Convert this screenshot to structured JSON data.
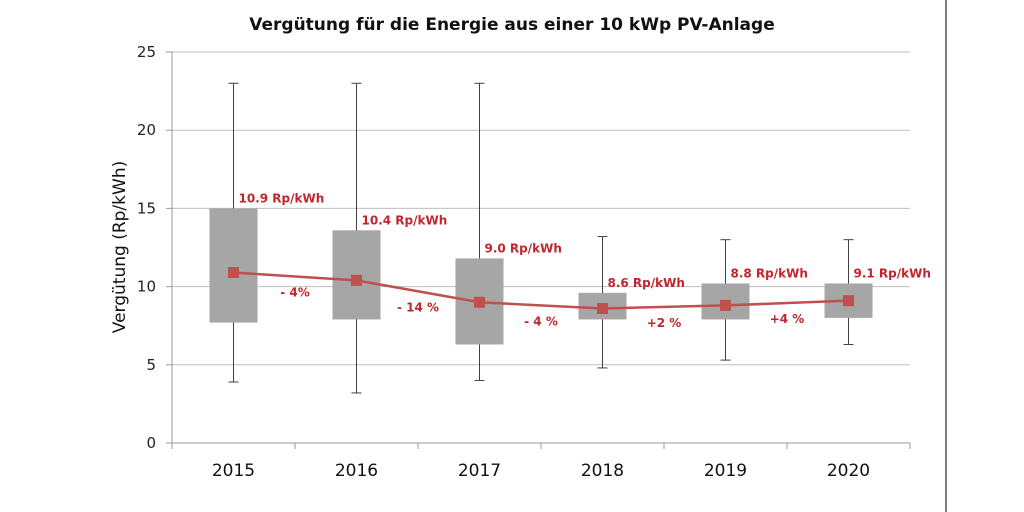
{
  "chart_data": {
    "type": "box",
    "title": "Vergütung für die Energie aus einer 10 kWp PV-Anlage",
    "xlabel": "",
    "ylabel": "Vergütung (Rp/kWh)",
    "ylim": [
      0,
      25
    ],
    "yticks": [
      0,
      5,
      10,
      15,
      20,
      25
    ],
    "grid": true,
    "legend": "none",
    "categories": [
      "2015",
      "2016",
      "2017",
      "2018",
      "2019",
      "2020"
    ],
    "series": [
      {
        "name": "whisker_max",
        "values": [
          23.0,
          23.0,
          23.0,
          13.2,
          13.0,
          13.0
        ]
      },
      {
        "name": "box_top",
        "values": [
          15.0,
          13.6,
          11.8,
          9.6,
          10.2,
          10.2
        ]
      },
      {
        "name": "box_bottom",
        "values": [
          7.7,
          7.9,
          6.3,
          7.9,
          7.9,
          8.0
        ]
      },
      {
        "name": "whisker_min",
        "values": [
          3.9,
          3.2,
          4.0,
          4.8,
          5.3,
          6.3
        ]
      },
      {
        "name": "mean",
        "values": [
          10.9,
          10.4,
          9.0,
          8.6,
          8.8,
          9.1
        ]
      }
    ],
    "value_labels": [
      "10.9 Rp/kWh",
      "10.4 Rp/kWh",
      "9.0 Rp/kWh",
      "8.6 Rp/kWh",
      "8.8 Rp/kWh",
      "9.1 Rp/kWh"
    ],
    "change_labels": [
      "- 4%",
      "- 14 %",
      "- 4 %",
      "+2 %",
      "+4 %"
    ],
    "colors": {
      "box": "#a6a6a6",
      "mean": "#c0504d",
      "label": "#c0262d"
    }
  }
}
